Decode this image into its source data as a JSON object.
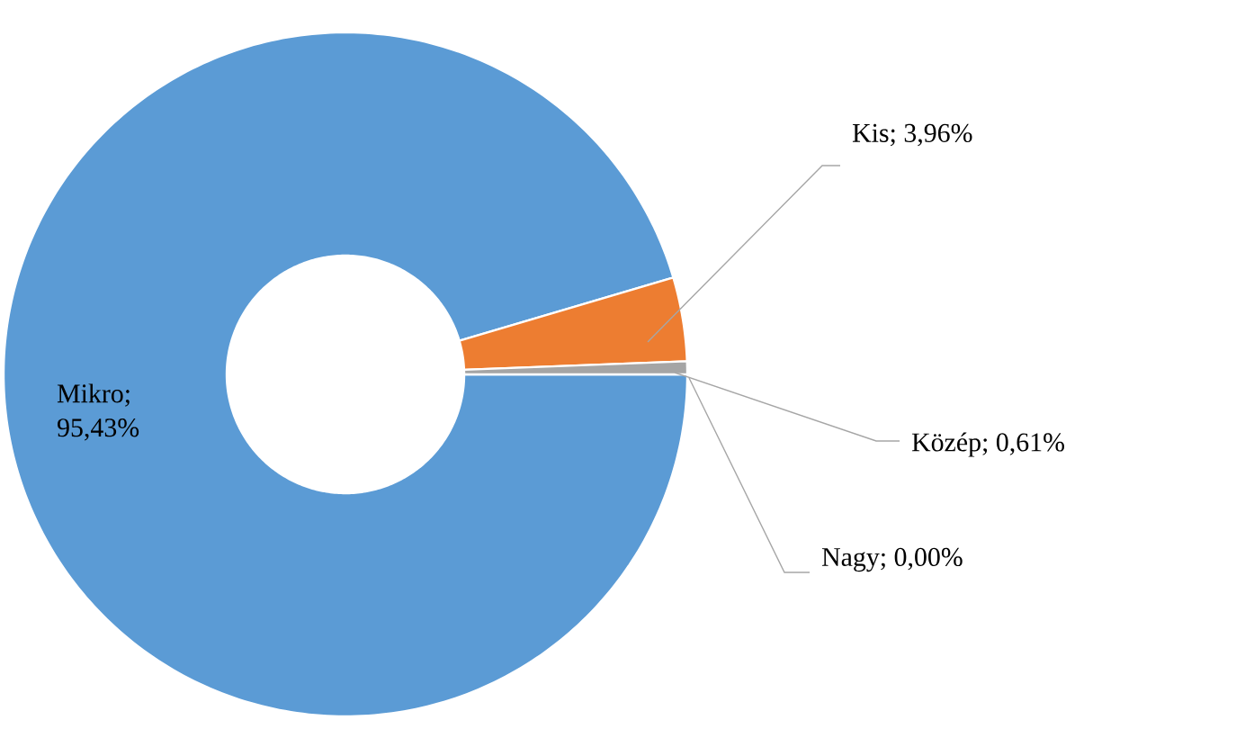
{
  "chart_data": {
    "type": "donut",
    "categories": [
      "Mikro",
      "Kis",
      "Közép",
      "Nagy"
    ],
    "values": [
      95.43,
      3.96,
      0.61,
      0.0
    ],
    "value_labels": [
      "; 95,43%",
      "; 3,96%",
      "; 0,61%",
      "; 0,00%"
    ],
    "colors": [
      "#5b9bd5",
      "#ed7d31",
      "#a5a5a5",
      "#ffc000"
    ]
  }
}
